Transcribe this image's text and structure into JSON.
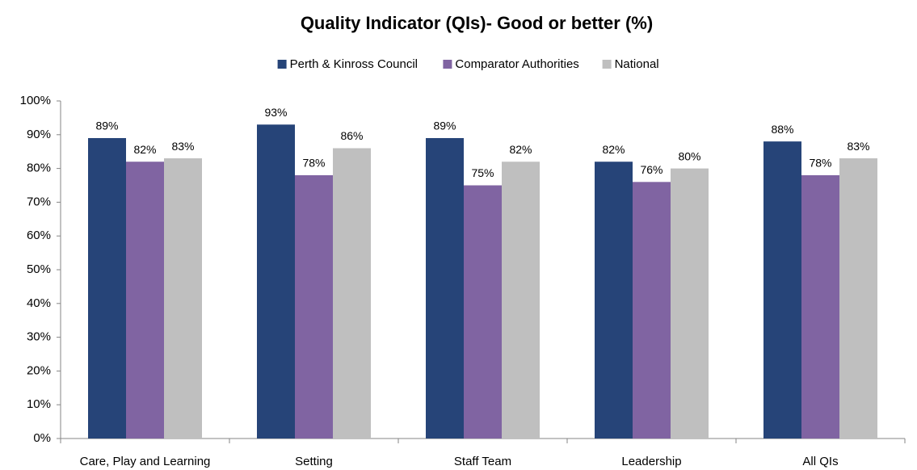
{
  "chart_data": {
    "type": "bar",
    "title": "Quality Indicator (QIs)- Good or better (%)",
    "categories": [
      "Care, Play and Learning",
      "Setting",
      "Staff Team",
      "Leadership",
      "All QIs"
    ],
    "series": [
      {
        "name": "Perth & Kinross Council",
        "color": "#264478",
        "values": [
          89,
          93,
          89,
          82,
          88
        ],
        "value_labels": [
          "89%",
          "93%",
          "89%",
          "82%",
          "88%"
        ]
      },
      {
        "name": "Comparator Authorities",
        "color": "#8064a2",
        "values": [
          82,
          78,
          75,
          76,
          78
        ],
        "value_labels": [
          "82%",
          "78%",
          "75%",
          "76%",
          "78%"
        ]
      },
      {
        "name": "National",
        "color": "#bfbfbf",
        "values": [
          83,
          86,
          82,
          80,
          83
        ],
        "value_labels": [
          "83%",
          "86%",
          "82%",
          "80%",
          "83%"
        ]
      }
    ],
    "ylim": [
      0,
      100
    ],
    "yticks": [
      {
        "value": 0,
        "label": "0%"
      },
      {
        "value": 10,
        "label": "10%"
      },
      {
        "value": 20,
        "label": "20%"
      },
      {
        "value": 30,
        "label": "30%"
      },
      {
        "value": 40,
        "label": "40%"
      },
      {
        "value": 50,
        "label": "50%"
      },
      {
        "value": 60,
        "label": "60%"
      },
      {
        "value": 70,
        "label": "70%"
      },
      {
        "value": 80,
        "label": "80%"
      },
      {
        "value": 90,
        "label": "90%"
      },
      {
        "value": 100,
        "label": "100%"
      }
    ],
    "legend": "top"
  }
}
